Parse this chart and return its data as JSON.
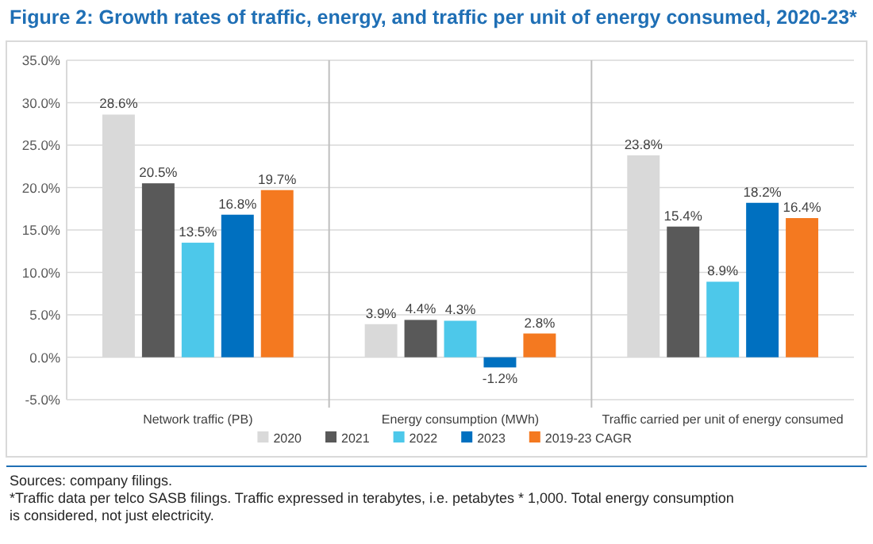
{
  "chart_data": {
    "type": "bar",
    "title": "Figure 2: Growth rates of traffic, energy, and traffic per unit of energy consumed, 2020-23*",
    "categories": [
      "Network traffic (PB)",
      "Energy consumption (MWh)",
      "Traffic carried per unit of energy consumed"
    ],
    "series": [
      {
        "name": "2020",
        "color": "#d9d9d9",
        "values": [
          28.6,
          3.9,
          23.8
        ],
        "value_labels": [
          "28.6%",
          "3.9%",
          "23.8%"
        ]
      },
      {
        "name": "2021",
        "color": "#595959",
        "values": [
          20.5,
          4.4,
          15.4
        ],
        "value_labels": [
          "20.5%",
          "4.4%",
          "15.4%"
        ]
      },
      {
        "name": "2022",
        "color": "#4dc8ea",
        "values": [
          13.5,
          4.3,
          8.9
        ],
        "value_labels": [
          "13.5%",
          "4.3%",
          "8.9%"
        ]
      },
      {
        "name": "2023",
        "color": "#0070c0",
        "values": [
          16.8,
          -1.2,
          18.2
        ],
        "value_labels": [
          "16.8%",
          "-1.2%",
          "18.2%"
        ]
      },
      {
        "name": "2019-23 CAGR",
        "color": "#f47920",
        "values": [
          19.7,
          2.8,
          16.4
        ],
        "value_labels": [
          "19.7%",
          "2.8%",
          "16.4%"
        ]
      }
    ],
    "ylim": [
      -5,
      35
    ],
    "yticks": [
      {
        "value": -5,
        "label": "-5.0%"
      },
      {
        "value": 0,
        "label": "0.0%"
      },
      {
        "value": 5,
        "label": "5.0%"
      },
      {
        "value": 10,
        "label": "10.0%"
      },
      {
        "value": 15,
        "label": "15.0%"
      },
      {
        "value": 20,
        "label": "20.0%"
      },
      {
        "value": 25,
        "label": "25.0%"
      },
      {
        "value": 30,
        "label": "30.0%"
      },
      {
        "value": 35,
        "label": "35.0%"
      }
    ],
    "grid": "y",
    "legend": "bottom",
    "annotations": [
      "Sources: company filings.",
      "*Traffic data per telco SASB filings. Traffic expressed in terabytes, i.e. petabytes * 1,000. Total energy consumption is considered, not just electricity."
    ]
  }
}
